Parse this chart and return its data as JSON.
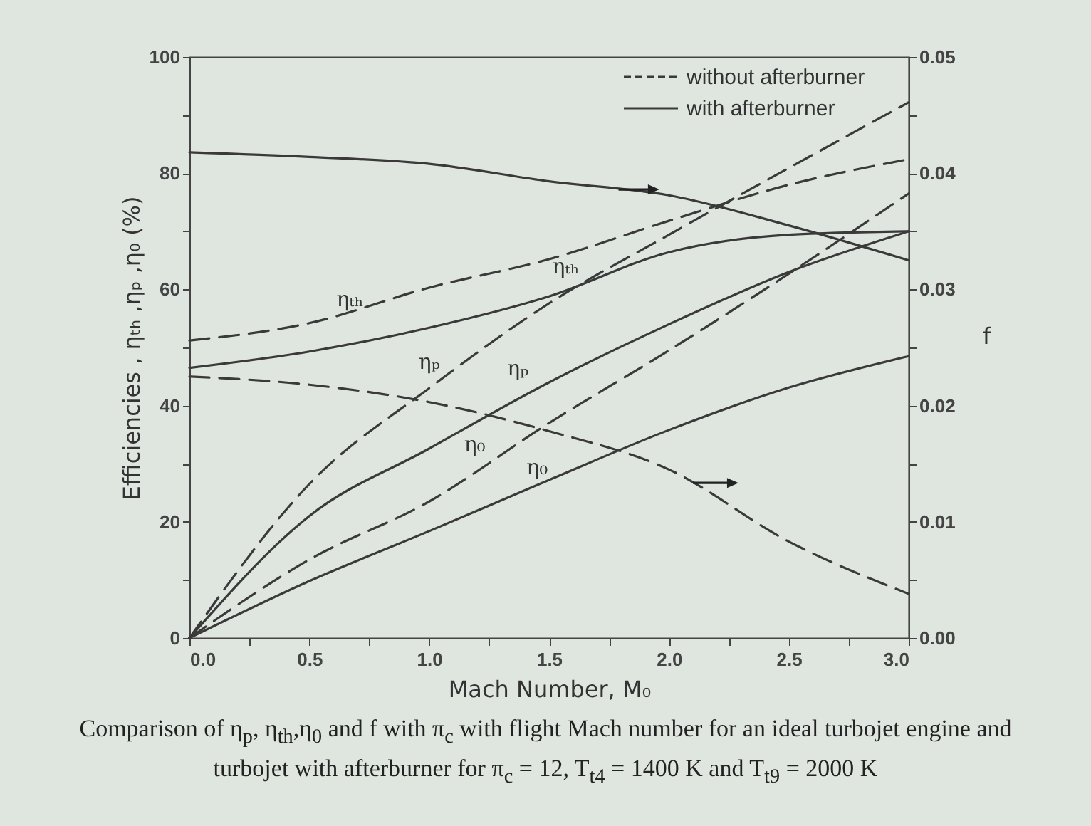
{
  "chart_data": {
    "type": "line",
    "xlabel": "Mach Number, M₀",
    "ylabel": "Efficiencies , ηₜₕ ,ηₚ ,η₀ (%)",
    "y2label": "f",
    "x": [
      0,
      0.5,
      1.0,
      1.5,
      2.0,
      2.5,
      3.0
    ],
    "series": [
      {
        "name": "with afterburner",
        "color": "#3a3a3a",
        "line_style": "solid",
        "axis": "y2",
        "values": [
          0.0418,
          0.0414,
          0.0408,
          0.0393,
          0.0381,
          0.0355,
          0.0325
        ]
      },
      {
        "name": "without afterburner",
        "color": "#3a3a3a",
        "line_style": "dashed",
        "axis": "y2",
        "values": [
          0.0225,
          0.0218,
          0.0203,
          0.0178,
          0.0145,
          0.0083,
          0.0038
        ]
      },
      {
        "name": "ηₜₕ",
        "color": "#3a3a3a",
        "line_style": "dashed",
        "values": [
          51.2,
          54.2,
          60.3,
          65.2,
          71.8,
          78,
          82.4
        ]
      },
      {
        "name": "ηₜₕ",
        "color": "#3a3a3a",
        "line_style": "solid",
        "values": [
          46.5,
          49.3,
          53.4,
          58.8,
          66.4,
          69.4,
          70
        ]
      },
      {
        "name": "ηₚ",
        "color": "#3a3a3a",
        "line_style": "dashed",
        "values": [
          0,
          26.5,
          43,
          57.6,
          69.4,
          80.9,
          92.2
        ]
      },
      {
        "name": "ηₚ",
        "color": "#3a3a3a",
        "line_style": "solid",
        "values": [
          0,
          21,
          32.6,
          44,
          54,
          63,
          70
        ]
      },
      {
        "name": "η₀",
        "color": "#3a3a3a",
        "line_style": "dashed",
        "values": [
          0,
          13.5,
          23.5,
          37,
          49.5,
          62.7,
          76.5
        ]
      },
      {
        "name": "η₀",
        "color": "#3a3a3a",
        "line_style": "solid",
        "values": [
          0,
          9.8,
          18.4,
          27.2,
          35.8,
          43.1,
          48.5
        ]
      }
    ],
    "xlim": [
      0,
      3
    ],
    "xticks": [
      {
        "value": 0,
        "label": "0.0"
      },
      {
        "value": 0.25,
        "label": null
      },
      {
        "value": 0.5,
        "label": "0.5"
      },
      {
        "value": 0.75,
        "label": null
      },
      {
        "value": 1,
        "label": "1.0"
      },
      {
        "value": 1.25,
        "label": null
      },
      {
        "value": 1.5,
        "label": "1.5"
      },
      {
        "value": 1.75,
        "label": null
      },
      {
        "value": 2,
        "label": "2.0"
      },
      {
        "value": 2.25,
        "label": null
      },
      {
        "value": 2.5,
        "label": "2.5"
      },
      {
        "value": 2.75,
        "label": null
      },
      {
        "value": 3,
        "label": "3.0"
      }
    ],
    "ylim": [
      0,
      100
    ],
    "yticks": [
      0,
      {
        "value": 10,
        "label": null
      },
      20,
      {
        "value": 30,
        "label": null
      },
      40,
      {
        "value": 50,
        "label": null
      },
      60,
      {
        "value": 70,
        "label": null
      },
      80,
      {
        "value": 90,
        "label": null
      },
      100
    ],
    "y2lim": [
      0,
      0.05
    ],
    "y2ticks": [
      {
        "value": 0,
        "label": "0.00"
      },
      {
        "value": 0.005,
        "label": null
      },
      {
        "value": 0.01,
        "label": "0.01"
      },
      {
        "value": 0.015,
        "label": null
      },
      {
        "value": 0.02,
        "label": "0.02"
      },
      {
        "value": 0.025,
        "label": null
      },
      {
        "value": 0.03,
        "label": "0.03"
      },
      {
        "value": 0.035,
        "label": null
      },
      {
        "value": 0.04,
        "label": "0.04"
      },
      {
        "value": 0.045,
        "label": null
      },
      {
        "value": 0.05,
        "label": "0.05"
      }
    ],
    "grid": false,
    "legend": "top right",
    "annotations": [
      "Comparison of η$_{p}$, η$_{th}$,η$_{0}$ and f with π$_{c}$ with flight Mach number for an ideal turbojet engine and turbojet with afterburner for π$_{c}$ = 12, T$_{t4}$ = 1400 K and T$_{t9}$ = 2000 K"
    ]
  }
}
